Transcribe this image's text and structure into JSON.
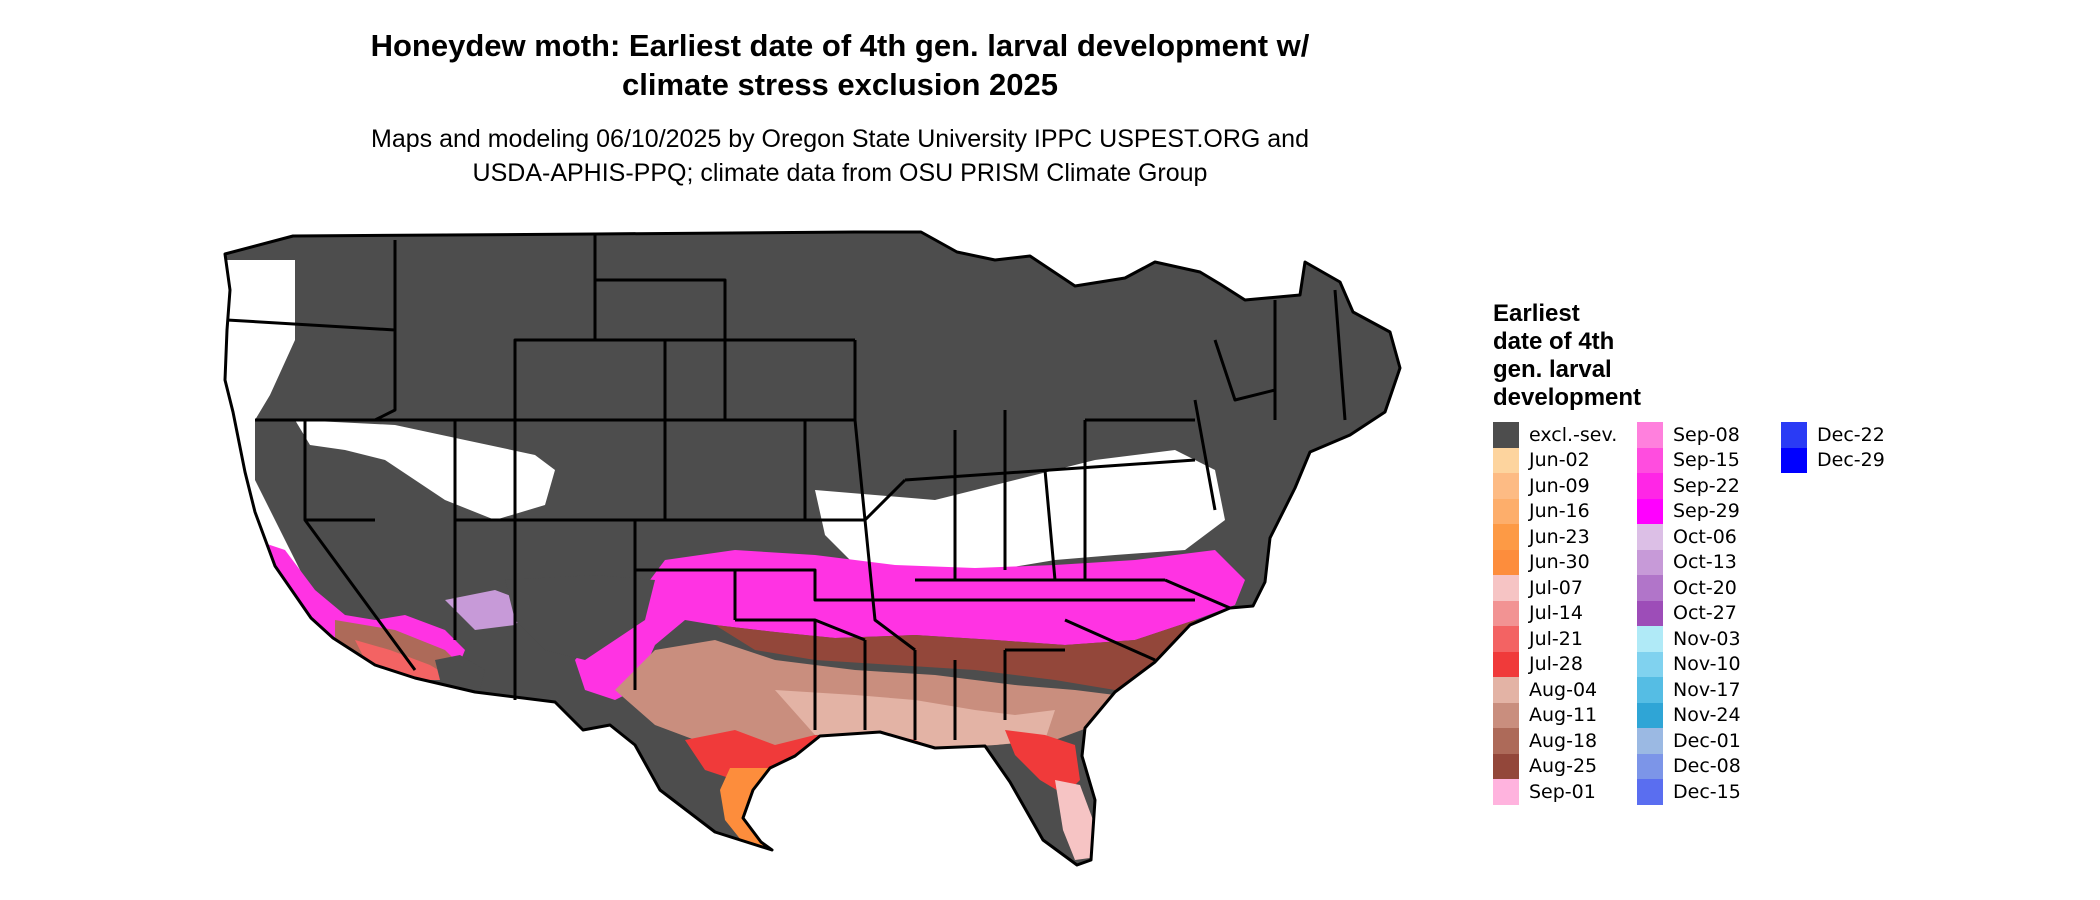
{
  "title_line1": "Honeydew moth: Earliest date of 4th gen. larval development w/",
  "title_line2": "climate stress exclusion 2025",
  "subtitle_line1": "Maps and modeling 06/10/2025 by Oregon State University IPPC USPEST.ORG and",
  "subtitle_line2": "USDA-APHIS-PPQ; climate data from OSU PRISM Climate Group",
  "legend": {
    "title": [
      "Earliest",
      "date of 4th",
      "gen. larval",
      "development"
    ],
    "columns": [
      [
        {
          "label": "excl.-sev.",
          "color": "#4d4d4d"
        },
        {
          "label": "Jun-02",
          "color": "#fdd49e"
        },
        {
          "label": "Jun-09",
          "color": "#fdbb84"
        },
        {
          "label": "Jun-16",
          "color": "#fdae6b"
        },
        {
          "label": "Jun-23",
          "color": "#fd9a45"
        },
        {
          "label": "Jun-30",
          "color": "#fd8d3c"
        },
        {
          "label": "Jul-07",
          "color": "#f6c4c4"
        },
        {
          "label": "Jul-14",
          "color": "#f29393"
        },
        {
          "label": "Jul-21",
          "color": "#f36363"
        },
        {
          "label": "Jul-28",
          "color": "#f03a3a"
        },
        {
          "label": "Aug-04",
          "color": "#e3b3a5"
        },
        {
          "label": "Aug-11",
          "color": "#c98e7e"
        },
        {
          "label": "Aug-18",
          "color": "#ad6a59"
        },
        {
          "label": "Aug-25",
          "color": "#93473a"
        },
        {
          "label": "Sep-01",
          "color": "#ffb3de"
        }
      ],
      [
        {
          "label": "Sep-08",
          "color": "#ff80dd"
        },
        {
          "label": "Sep-15",
          "color": "#ff4ddf"
        },
        {
          "label": "Sep-22",
          "color": "#ff26e6"
        },
        {
          "label": "Sep-29",
          "color": "#ff00ff"
        },
        {
          "label": "Oct-06",
          "color": "#dcbfe6"
        },
        {
          "label": "Oct-13",
          "color": "#c79ad8"
        },
        {
          "label": "Oct-20",
          "color": "#b175c9"
        },
        {
          "label": "Oct-27",
          "color": "#9d4db8"
        },
        {
          "label": "Nov-03",
          "color": "#b0eaf7"
        },
        {
          "label": "Nov-10",
          "color": "#80d2ef"
        },
        {
          "label": "Nov-17",
          "color": "#55bde4"
        },
        {
          "label": "Nov-24",
          "color": "#2fa5d6"
        },
        {
          "label": "Dec-01",
          "color": "#9bb9e3"
        },
        {
          "label": "Dec-08",
          "color": "#7c95e8"
        },
        {
          "label": "Dec-15",
          "color": "#5a6ef0"
        }
      ],
      [
        {
          "label": "Dec-22",
          "color": "#2a3bf5"
        },
        {
          "label": "Dec-29",
          "color": "#0000ff"
        }
      ]
    ]
  }
}
